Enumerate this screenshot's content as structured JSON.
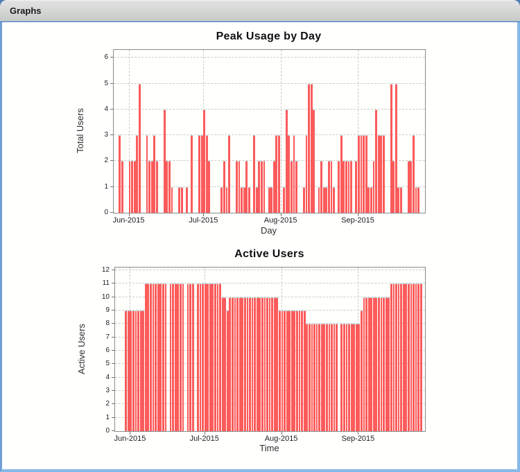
{
  "window": {
    "title": "Graphs"
  },
  "colors": {
    "bar_fill": "#FB5B5B",
    "bar_outline": "#C2C2C2",
    "grid": "#CACACA",
    "plot_border": "#8A8A8A",
    "window_border_blue": "#87B9E8",
    "desktop_blue": "#4F80B5",
    "titlebar_gray": "#CDD1CD"
  },
  "chart_data": [
    {
      "type": "bar",
      "title": "Peak Usage by Day",
      "xlabel": "Day",
      "ylabel": "Total Users",
      "ylim": [
        0,
        6
      ],
      "grid": true,
      "y_ticks": [
        0,
        1,
        2,
        3,
        4,
        5,
        6
      ],
      "x_total_days": 125,
      "x_ticks": [
        {
          "label": "Jun-2015",
          "day": 6
        },
        {
          "label": "Jul-2015",
          "day": 36
        },
        {
          "label": "Aug-2015",
          "day": 67
        },
        {
          "label": "Sep-2015",
          "day": 98
        }
      ],
      "bars": [
        [
          2,
          3
        ],
        [
          3,
          2
        ],
        [
          6,
          2
        ],
        [
          7,
          2
        ],
        [
          8,
          2
        ],
        [
          9,
          3
        ],
        [
          10,
          5
        ],
        [
          13,
          3
        ],
        [
          14,
          2
        ],
        [
          15,
          2
        ],
        [
          16,
          3
        ],
        [
          17,
          2
        ],
        [
          20,
          4
        ],
        [
          21,
          2
        ],
        [
          22,
          2
        ],
        [
          23,
          1
        ],
        [
          26,
          1
        ],
        [
          27,
          1
        ],
        [
          29,
          1
        ],
        [
          31,
          3
        ],
        [
          34,
          3
        ],
        [
          35,
          3
        ],
        [
          36,
          4
        ],
        [
          37,
          3
        ],
        [
          38,
          2
        ],
        [
          43,
          1
        ],
        [
          44,
          2
        ],
        [
          45,
          1
        ],
        [
          46,
          3
        ],
        [
          49,
          2
        ],
        [
          50,
          2
        ],
        [
          51,
          1
        ],
        [
          52,
          1
        ],
        [
          53,
          2
        ],
        [
          54,
          1
        ],
        [
          56,
          3
        ],
        [
          57,
          1
        ],
        [
          58,
          2
        ],
        [
          59,
          2
        ],
        [
          60,
          2
        ],
        [
          62,
          1
        ],
        [
          63,
          1
        ],
        [
          64,
          2
        ],
        [
          65,
          3
        ],
        [
          66,
          3
        ],
        [
          68,
          1
        ],
        [
          69,
          4
        ],
        [
          70,
          3
        ],
        [
          71,
          2
        ],
        [
          72,
          3
        ],
        [
          73,
          2
        ],
        [
          76,
          1
        ],
        [
          77,
          3
        ],
        [
          78,
          5
        ],
        [
          79,
          5
        ],
        [
          80,
          4
        ],
        [
          82,
          1
        ],
        [
          83,
          2
        ],
        [
          84,
          1
        ],
        [
          85,
          1
        ],
        [
          86,
          2
        ],
        [
          87,
          2
        ],
        [
          88,
          1
        ],
        [
          90,
          2
        ],
        [
          91,
          3
        ],
        [
          92,
          2
        ],
        [
          93,
          2
        ],
        [
          94,
          2
        ],
        [
          95,
          2
        ],
        [
          97,
          2
        ],
        [
          98,
          3
        ],
        [
          99,
          3
        ],
        [
          100,
          3
        ],
        [
          101,
          3
        ],
        [
          102,
          1
        ],
        [
          103,
          1
        ],
        [
          104,
          2
        ],
        [
          105,
          4
        ],
        [
          106,
          3
        ],
        [
          107,
          3
        ],
        [
          108,
          3
        ],
        [
          111,
          5
        ],
        [
          112,
          2
        ],
        [
          113,
          5
        ],
        [
          114,
          1
        ],
        [
          115,
          1
        ],
        [
          118,
          2
        ],
        [
          119,
          2
        ],
        [
          120,
          3
        ],
        [
          121,
          1
        ],
        [
          122,
          1
        ]
      ]
    },
    {
      "type": "bar",
      "title": "Active Users",
      "xlabel": "Time",
      "ylabel": "Active Users",
      "ylim": [
        0,
        12
      ],
      "grid": true,
      "y_ticks": [
        0,
        1,
        2,
        3,
        4,
        5,
        6,
        7,
        8,
        9,
        10,
        11,
        12
      ],
      "x_total_days": 125,
      "x_ticks": [
        {
          "label": "Jun-2015",
          "day": 6
        },
        {
          "label": "Jul-2015",
          "day": 36
        },
        {
          "label": "Aug-2015",
          "day": 67
        },
        {
          "label": "Sep-2015",
          "day": 98
        }
      ],
      "bars": [
        [
          4,
          9
        ],
        [
          5,
          9
        ],
        [
          6,
          9
        ],
        [
          7,
          9
        ],
        [
          8,
          9
        ],
        [
          9,
          9
        ],
        [
          10,
          9
        ],
        [
          11,
          9
        ],
        [
          12,
          11
        ],
        [
          13,
          11
        ],
        [
          14,
          11
        ],
        [
          15,
          11
        ],
        [
          16,
          11
        ],
        [
          17,
          11
        ],
        [
          18,
          11
        ],
        [
          19,
          11
        ],
        [
          20,
          11
        ],
        [
          22,
          11
        ],
        [
          23,
          11
        ],
        [
          24,
          11
        ],
        [
          25,
          11
        ],
        [
          26,
          11
        ],
        [
          27,
          11
        ],
        [
          29,
          11
        ],
        [
          30,
          11
        ],
        [
          31,
          11
        ],
        [
          33,
          11
        ],
        [
          34,
          11
        ],
        [
          35,
          11
        ],
        [
          36,
          11
        ],
        [
          37,
          11
        ],
        [
          38,
          11
        ],
        [
          39,
          11
        ],
        [
          40,
          11
        ],
        [
          41,
          11
        ],
        [
          42,
          11
        ],
        [
          43,
          10
        ],
        [
          44,
          10
        ],
        [
          45,
          9
        ],
        [
          46,
          10
        ],
        [
          47,
          10
        ],
        [
          48,
          10
        ],
        [
          49,
          10
        ],
        [
          50,
          10
        ],
        [
          51,
          10
        ],
        [
          52,
          10
        ],
        [
          53,
          10
        ],
        [
          54,
          10
        ],
        [
          55,
          10
        ],
        [
          56,
          10
        ],
        [
          57,
          10
        ],
        [
          58,
          10
        ],
        [
          59,
          10
        ],
        [
          60,
          10
        ],
        [
          61,
          10
        ],
        [
          62,
          10
        ],
        [
          63,
          10
        ],
        [
          64,
          10
        ],
        [
          65,
          10
        ],
        [
          66,
          9
        ],
        [
          67,
          9
        ],
        [
          68,
          9
        ],
        [
          69,
          9
        ],
        [
          70,
          9
        ],
        [
          71,
          9
        ],
        [
          72,
          9
        ],
        [
          73,
          9
        ],
        [
          74,
          9
        ],
        [
          75,
          9
        ],
        [
          76,
          9
        ],
        [
          77,
          8
        ],
        [
          78,
          8
        ],
        [
          79,
          8
        ],
        [
          80,
          8
        ],
        [
          81,
          8
        ],
        [
          82,
          8
        ],
        [
          83,
          8
        ],
        [
          84,
          8
        ],
        [
          85,
          8
        ],
        [
          86,
          8
        ],
        [
          87,
          8
        ],
        [
          88,
          8
        ],
        [
          89,
          8
        ],
        [
          91,
          8
        ],
        [
          92,
          8
        ],
        [
          93,
          8
        ],
        [
          94,
          8
        ],
        [
          95,
          8
        ],
        [
          96,
          8
        ],
        [
          97,
          8
        ],
        [
          98,
          8
        ],
        [
          99,
          9
        ],
        [
          100,
          10
        ],
        [
          101,
          10
        ],
        [
          102,
          10
        ],
        [
          103,
          10
        ],
        [
          104,
          10
        ],
        [
          105,
          10
        ],
        [
          106,
          10
        ],
        [
          107,
          10
        ],
        [
          108,
          10
        ],
        [
          109,
          10
        ],
        [
          110,
          10
        ],
        [
          111,
          11
        ],
        [
          112,
          11
        ],
        [
          113,
          11
        ],
        [
          114,
          11
        ],
        [
          115,
          11
        ],
        [
          116,
          11
        ],
        [
          117,
          11
        ],
        [
          118,
          11
        ],
        [
          119,
          11
        ],
        [
          120,
          11
        ],
        [
          121,
          11
        ],
        [
          122,
          11
        ],
        [
          123,
          11
        ]
      ]
    }
  ]
}
